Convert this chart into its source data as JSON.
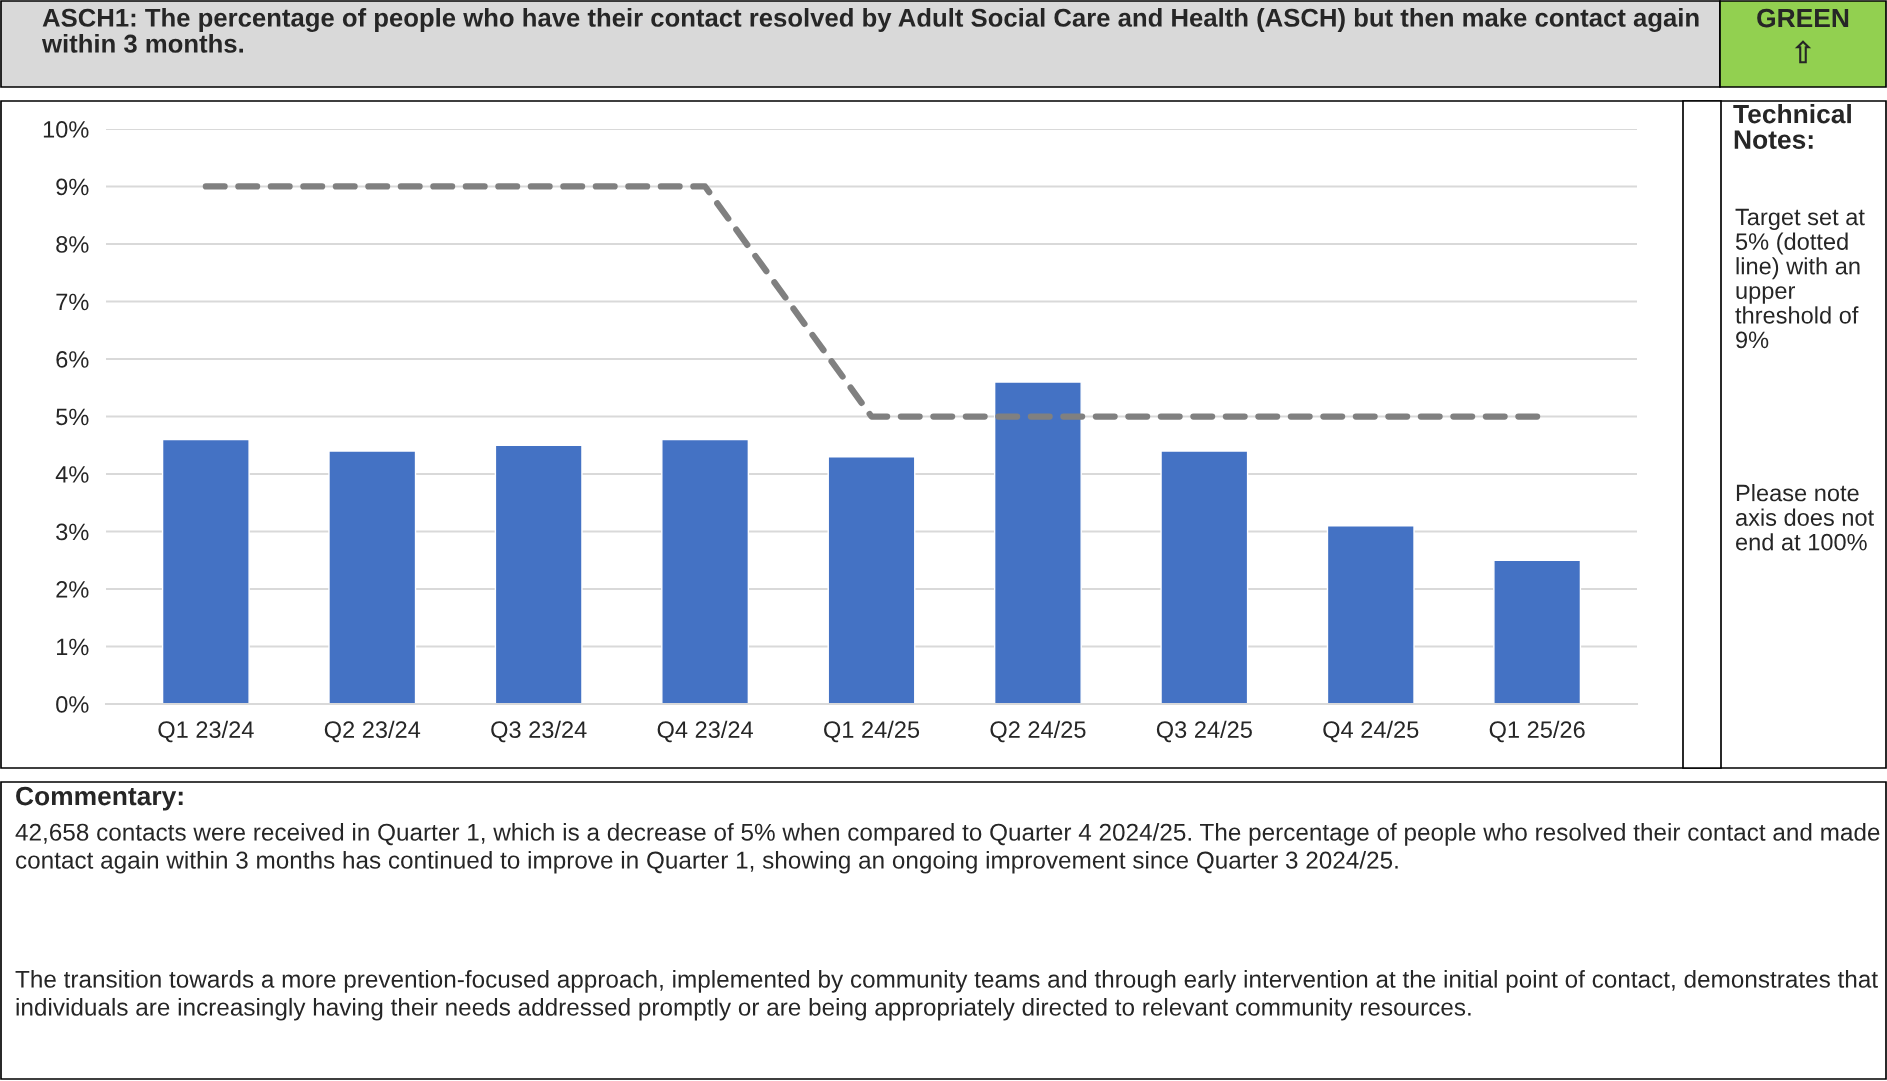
{
  "chart_data": {
    "type": "bar",
    "title": "ASCH1: The percentage of people who have their contact resolved by Adult Social Care and Health (ASCH) but then make contact again within 3 months.",
    "categories": [
      "Q1 23/24",
      "Q2 23/24",
      "Q3 23/24",
      "Q4 23/24",
      "Q1 24/25",
      "Q2 24/25",
      "Q3 24/25",
      "Q4 24/25",
      "Q1 25/26"
    ],
    "series": [
      {
        "color": "#4472c4",
        "values": [
          4.6,
          4.4,
          4.5,
          4.6,
          4.3,
          5.6,
          4.4,
          3.1,
          2.5
        ]
      },
      {
        "type": "line",
        "color": "#808080",
        "line_style": "dashed",
        "values": [
          9,
          9,
          9,
          9,
          5,
          5,
          5,
          5,
          5
        ]
      }
    ],
    "ylim": [
      0,
      10
    ],
    "yticks": [
      {
        "value": 0,
        "label": "0%"
      },
      {
        "value": 1,
        "label": "1%"
      },
      {
        "value": 2,
        "label": "2%"
      },
      {
        "value": 3,
        "label": "3%"
      },
      {
        "value": 4,
        "label": "4%"
      },
      {
        "value": 5,
        "label": "5%"
      },
      {
        "value": 6,
        "label": "6%"
      },
      {
        "value": 7,
        "label": "7%"
      },
      {
        "value": 8,
        "label": "8%"
      },
      {
        "value": 9,
        "label": "9%"
      },
      {
        "value": 10,
        "label": "10%"
      }
    ],
    "grid": "y",
    "annotations": [
      "GREEN",
      "⇧",
      "Technical Notes:",
      "Target set at 5% (dotted line) with an upper threshold of 9%",
      "Please note axis does not end at 100%",
      "Commentary:",
      "42,658 contacts were received in Quarter 1, which is a decrease of 5% when compared to Quarter 4 2024/25. The percentage of people who resolved their contact and made contact again within 3 months has continued to improve in Quarter 1, showing an ongoing improvement since Quarter 3 2024/25.",
      "The transition towards a more prevention-focused approach, implemented by community teams and through early intervention at the initial point of contact, demonstrates that individuals are increasingly having their needs addressed promptly or are being appropriately directed to relevant community resources."
    ]
  }
}
